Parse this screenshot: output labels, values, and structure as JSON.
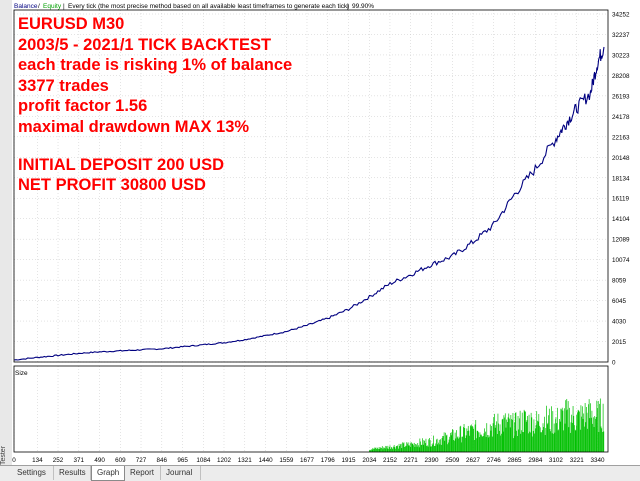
{
  "header": {
    "legend_balance": "Balance",
    "legend_equity": "Equity",
    "info": "Every tick (the most precise method based on all available least timeframes to generate each tick)",
    "progress": "99.90%",
    "separator": "/",
    "pipe": "|"
  },
  "overlay": {
    "lines": [
      "EURUSD M30",
      "2003/5 - 2021/1 TICK BACKTEST",
      "each trade is risking 1% of balance",
      "3377 trades",
      "profit factor 1.56",
      "maximal drawdown MAX 13%"
    ],
    "lines2": [
      "INITIAL DEPOSIT 200 USD",
      "NET PROFIT 30800 USD"
    ]
  },
  "side_label": "Tester",
  "tabs": [
    {
      "label": "Settings",
      "active": false
    },
    {
      "label": "Results",
      "active": false
    },
    {
      "label": "Graph",
      "active": true
    },
    {
      "label": "Report",
      "active": false
    },
    {
      "label": "Journal",
      "active": false
    }
  ],
  "colors": {
    "balance": "#000080",
    "volume": "#00c000",
    "grid": "#c8c8c8",
    "axis": "#000000",
    "overlay_text": "#ff0000"
  },
  "chart_data": [
    {
      "type": "line",
      "series": [
        {
          "name": "Balance",
          "x": [
            0,
            134,
            252,
            371,
            490,
            609,
            727,
            846,
            965,
            1084,
            1202,
            1321,
            1440,
            1559,
            1677,
            1796,
            1915,
            2034,
            2152,
            2271,
            2390,
            2509,
            2627,
            2746,
            2865,
            2984,
            3102,
            3160,
            3221,
            3300,
            3340,
            3377
          ],
          "y": [
            200,
            450,
            650,
            850,
            1000,
            1100,
            1200,
            1300,
            1500,
            1700,
            1900,
            2200,
            2600,
            3000,
            3600,
            4300,
            5200,
            6400,
            7700,
            8600,
            9600,
            10400,
            11800,
            13500,
            16500,
            19000,
            22000,
            23500,
            25000,
            26500,
            29500,
            31000
          ]
        }
      ],
      "x_ticks": [
        0,
        134,
        252,
        371,
        490,
        609,
        727,
        846,
        965,
        1084,
        1202,
        1321,
        1440,
        1559,
        1677,
        1796,
        1915,
        2034,
        2152,
        2271,
        2390,
        2509,
        2627,
        2746,
        2865,
        2984,
        3102,
        3221,
        3340
      ],
      "y_ticks": [
        34252,
        32237,
        30223,
        28208,
        26193,
        24178,
        22163,
        20148,
        18134,
        16119,
        14104,
        12089,
        10074,
        8059,
        6045,
        4030,
        2015,
        0
      ],
      "ylim": [
        0,
        34252
      ],
      "grid": true,
      "title": "",
      "xlabel": "",
      "ylabel": ""
    },
    {
      "type": "bar",
      "title": "Size",
      "description_of_density": "volume lots per trade",
      "bins_x": [
        2034,
        2100,
        2152,
        2200,
        2271,
        2330,
        2390,
        2450,
        2509,
        2560,
        2627,
        2690,
        2746,
        2800,
        2865,
        2920,
        2984,
        3040,
        3102,
        3160,
        3221,
        3280,
        3340,
        3377
      ],
      "values": [
        0.05,
        0.08,
        0.1,
        0.12,
        0.14,
        0.18,
        0.2,
        0.25,
        0.3,
        0.35,
        0.4,
        0.45,
        0.5,
        0.55,
        0.5,
        0.6,
        0.55,
        0.62,
        0.58,
        0.7,
        0.62,
        0.72,
        0.68,
        0.72
      ],
      "ylim": [
        0,
        1
      ]
    }
  ]
}
